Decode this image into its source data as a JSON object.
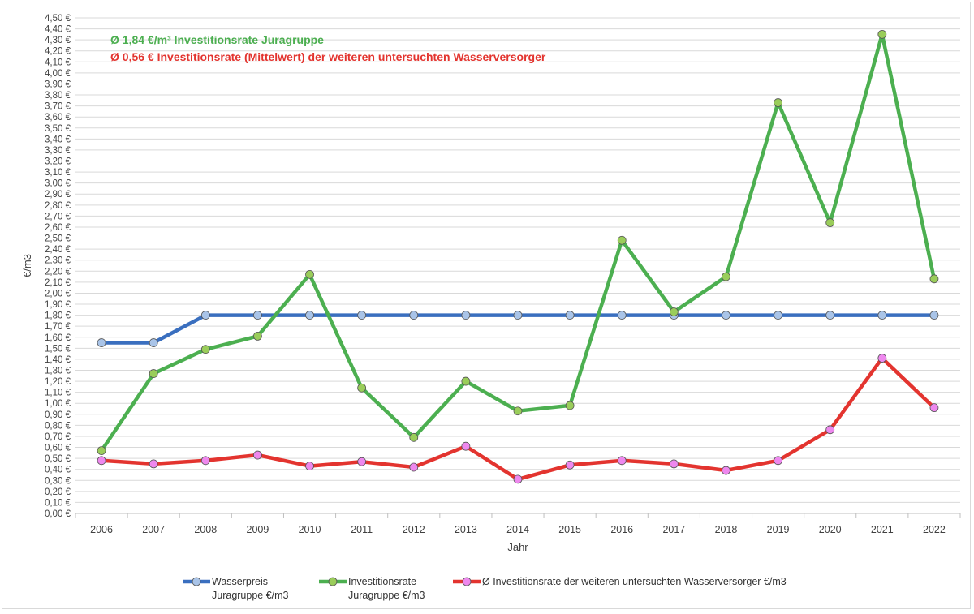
{
  "chart_data": {
    "type": "line",
    "xlabel": "Jahr",
    "ylabel": "€/m3",
    "ylim": [
      0,
      4.5
    ],
    "ytick_step": 0.1,
    "ytick_suffix": " €",
    "grid": "horizontal",
    "legend_position": "bottom",
    "categories": [
      "2006",
      "2007",
      "2008",
      "2009",
      "2010",
      "2011",
      "2012",
      "2013",
      "2014",
      "2015",
      "2016",
      "2017",
      "2018",
      "2019",
      "2020",
      "2021",
      "2022"
    ],
    "annotations": [
      {
        "text": "Ø 1,84 €/m³ Investitionsrate Juragruppe",
        "color": "#4caf50"
      },
      {
        "text": "Ø 0,56 € Investitionsrate (Mittelwert) der weiteren untersuchten Wasserversorger",
        "color": "#e3342f"
      }
    ],
    "series": [
      {
        "name": "Wasserpreis Juragruppe €/m3",
        "legend_lines": [
          "Wasserpreis",
          "Juragruppe €/m3"
        ],
        "line_color": "#3a6fbf",
        "marker_color": "#a9c4e8",
        "values": [
          1.55,
          1.55,
          1.8,
          1.8,
          1.8,
          1.8,
          1.8,
          1.8,
          1.8,
          1.8,
          1.8,
          1.8,
          1.8,
          1.8,
          1.8,
          1.8,
          1.8
        ]
      },
      {
        "name": "Investitionsrate Juragruppe €/m3",
        "legend_lines": [
          "Investitionsrate",
          "Juragruppe €/m3"
        ],
        "line_color": "#4caf50",
        "marker_color": "#9acd5a",
        "values": [
          0.57,
          1.27,
          1.49,
          1.61,
          2.17,
          1.14,
          0.69,
          1.2,
          0.93,
          0.98,
          2.48,
          1.83,
          2.15,
          3.73,
          2.64,
          4.35,
          2.13
        ]
      },
      {
        "name": "Ø Investitionsrate der weiteren untersuchten Wasserversorger €/m3",
        "legend_lines": [
          "Ø Investitionsrate der weiteren untersuchten Wasserversorger €/m3"
        ],
        "line_color": "#e3342f",
        "marker_color": "#ee88ee",
        "values": [
          0.48,
          0.45,
          0.48,
          0.53,
          0.43,
          0.47,
          0.42,
          0.61,
          0.31,
          0.44,
          0.48,
          0.45,
          0.39,
          0.48,
          0.76,
          1.41,
          0.96
        ]
      }
    ]
  }
}
